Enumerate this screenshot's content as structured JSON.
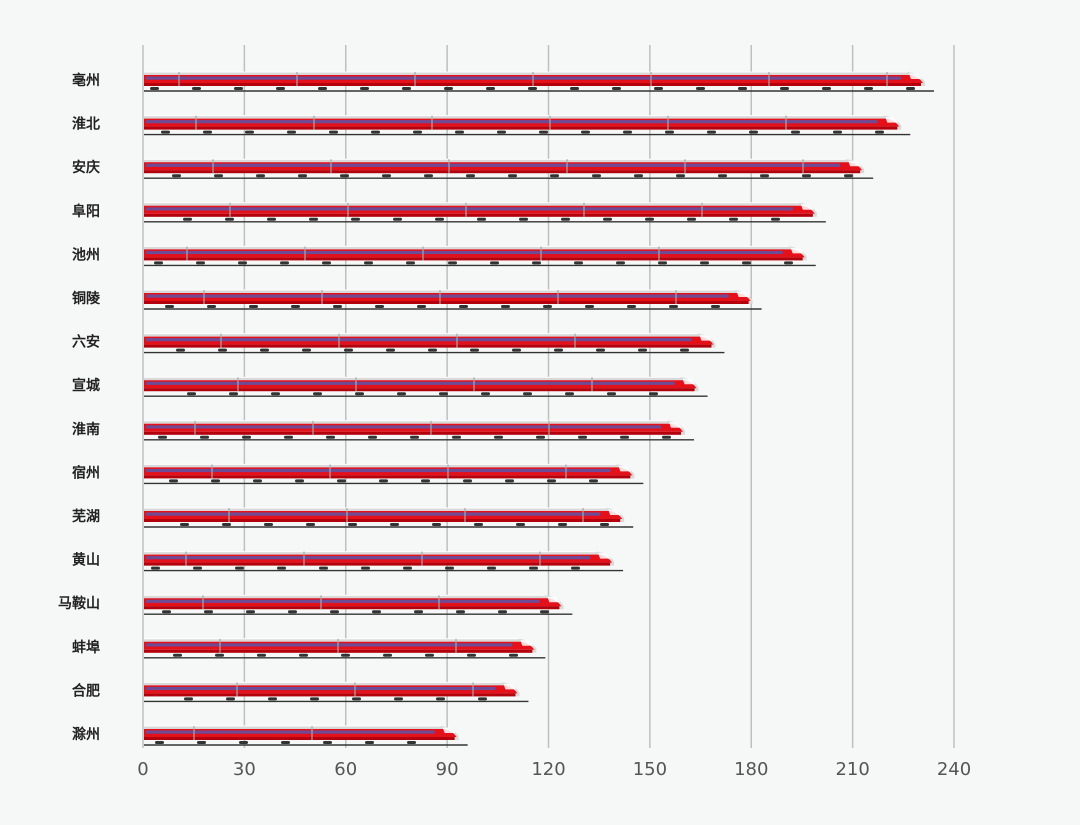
{
  "chart_data": {
    "type": "bar",
    "orientation": "horizontal",
    "title": "",
    "xlabel": "",
    "ylabel": "",
    "categories": [
      "亳州",
      "淮北",
      "安庆",
      "阜阳",
      "池州",
      "铜陵",
      "六安",
      "宣城",
      "淮南",
      "宿州",
      "芜湖",
      "黄山",
      "马鞍山",
      "蚌埠",
      "合肥",
      "滁州"
    ],
    "values": [
      232,
      225,
      214,
      200,
      197,
      181,
      170,
      165,
      161,
      146,
      143,
      140,
      125,
      117,
      112,
      94
    ],
    "xlim": [
      0,
      240
    ],
    "xticks": [
      "0",
      "30",
      "60",
      "90",
      "120",
      "150",
      "180",
      "210",
      "240"
    ],
    "grid": "vertical",
    "legend": "none",
    "bar_style": "high-speed-train"
  },
  "colors": {
    "background": "#f6f8f7",
    "train_red": "#e4101a",
    "train_dark_red": "#b3000c",
    "train_body": "#d9d9d9",
    "train_shadow": "#a8a8a8",
    "window_blue": "#4a5fbf",
    "gridline": "#bfbfbf",
    "rail": "#333333"
  }
}
